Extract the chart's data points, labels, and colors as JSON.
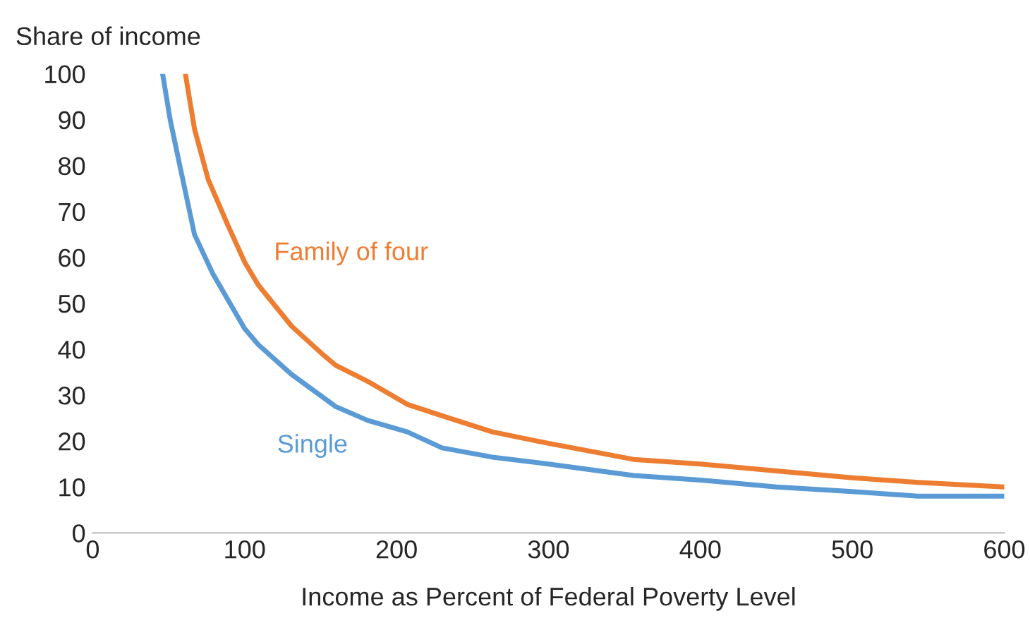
{
  "chart_data": {
    "type": "line",
    "ylabel": "Share of income",
    "xlabel": "Income as Percent of Federal Poverty Level",
    "xlim": [
      0,
      600
    ],
    "xticks": [
      0,
      100,
      200,
      300,
      400,
      500,
      600
    ],
    "ylim": [
      0,
      100
    ],
    "yticks": [
      0,
      10,
      20,
      30,
      40,
      50,
      60,
      70,
      80,
      90,
      100
    ],
    "grid": false,
    "legend": false,
    "marker": "none",
    "line_style": "solid",
    "series": [
      {
        "name": "Family of four",
        "color": "#ed7d31",
        "x": [
          61,
          67,
          76,
          89,
          100,
          109,
          131,
          151,
          160,
          181,
          207,
          230,
          263,
          300,
          356,
          400,
          450,
          500,
          543,
          600
        ],
        "values": [
          100,
          88,
          77,
          67,
          59,
          54,
          45,
          39,
          36.5,
          33,
          28,
          25.5,
          22,
          19.5,
          16,
          15,
          13.5,
          12,
          11,
          10
        ]
      },
      {
        "name": "Single",
        "color": "#5b9bd5",
        "x": [
          46,
          51,
          58,
          67,
          79,
          100,
          109,
          131,
          160,
          181,
          207,
          230,
          263,
          300,
          356,
          400,
          450,
          500,
          543,
          600
        ],
        "values": [
          100,
          90,
          79,
          65,
          56.5,
          44.5,
          41,
          34.5,
          27.5,
          24.5,
          22,
          18.5,
          16.5,
          15,
          12.5,
          11.5,
          10,
          9,
          8,
          8
        ]
      }
    ]
  }
}
